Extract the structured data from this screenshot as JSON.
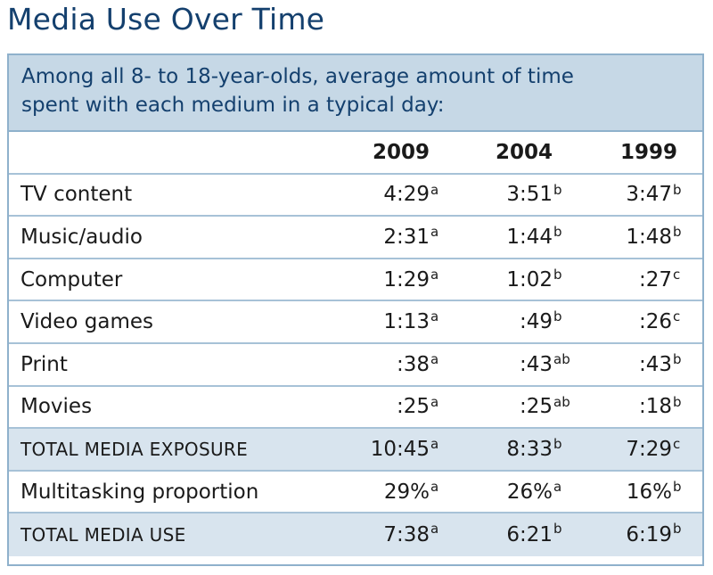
{
  "title": "Media Use Over Time",
  "chart_data": {
    "type": "table",
    "subtitle_line1": "Among all 8- to 18-year-olds, average amount of time",
    "subtitle_line2": "spent with each medium in a typical day:",
    "columns": [
      "2009",
      "2004",
      "1999"
    ],
    "rows": [
      {
        "label": "TV content",
        "caps": false,
        "shaded": false,
        "cells": [
          {
            "v": "4:29",
            "s": "a"
          },
          {
            "v": "3:51",
            "s": "b"
          },
          {
            "v": "3:47",
            "s": "b"
          }
        ]
      },
      {
        "label": "Music/audio",
        "caps": false,
        "shaded": false,
        "cells": [
          {
            "v": "2:31",
            "s": "a"
          },
          {
            "v": "1:44",
            "s": "b"
          },
          {
            "v": "1:48",
            "s": "b"
          }
        ]
      },
      {
        "label": "Computer",
        "caps": false,
        "shaded": false,
        "cells": [
          {
            "v": "1:29",
            "s": "a"
          },
          {
            "v": "1:02",
            "s": "b"
          },
          {
            "v": ":27",
            "s": "c"
          }
        ]
      },
      {
        "label": "Video games",
        "caps": false,
        "shaded": false,
        "cells": [
          {
            "v": "1:13",
            "s": "a"
          },
          {
            "v": ":49",
            "s": "b"
          },
          {
            "v": ":26",
            "s": "c"
          }
        ]
      },
      {
        "label": "Print",
        "caps": false,
        "shaded": false,
        "cells": [
          {
            "v": ":38",
            "s": "a"
          },
          {
            "v": ":43",
            "s": "ab"
          },
          {
            "v": ":43",
            "s": "b"
          }
        ]
      },
      {
        "label": "Movies",
        "caps": false,
        "shaded": false,
        "cells": [
          {
            "v": ":25",
            "s": "a"
          },
          {
            "v": ":25",
            "s": "ab"
          },
          {
            "v": ":18",
            "s": "b"
          }
        ]
      },
      {
        "label": "TOTAL MEDIA EXPOSURE",
        "caps": true,
        "shaded": true,
        "cells": [
          {
            "v": "10:45",
            "s": "a"
          },
          {
            "v": "8:33",
            "s": "b"
          },
          {
            "v": "7:29",
            "s": "c"
          }
        ]
      },
      {
        "label": "Multitasking proportion",
        "caps": false,
        "shaded": false,
        "cells": [
          {
            "v": "29%",
            "s": "a"
          },
          {
            "v": "26%",
            "s": "a"
          },
          {
            "v": "16%",
            "s": "b"
          }
        ]
      },
      {
        "label": "TOTAL MEDIA USE",
        "caps": true,
        "shaded": true,
        "cells": [
          {
            "v": "7:38",
            "s": "a"
          },
          {
            "v": "6:21",
            "s": "b"
          },
          {
            "v": "6:19",
            "s": "b"
          }
        ]
      }
    ]
  },
  "colors": {
    "title": "#14406e",
    "subtitle_bg": "#c6d8e6",
    "shaded_row": "#d8e4ee",
    "border": "#8fb1cc"
  }
}
